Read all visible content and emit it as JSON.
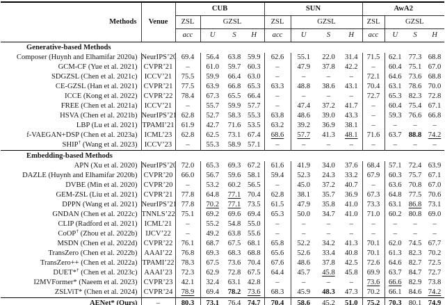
{
  "table": {
    "header": {
      "methods_label": "Methods",
      "venue_label": "Venue",
      "datasets": [
        "CUB",
        "SUN",
        "AwA2"
      ],
      "zsl_label": "ZSL",
      "gzsl_label": "GZSL",
      "metric_acc": "acc",
      "metric_u": "U",
      "metric_s": "S",
      "metric_h": "H"
    },
    "sections": [
      {
        "title": "Generative-based Methods",
        "rows": [
          {
            "method": "Composer (Huynh and Elhamifar 2020a)",
            "venue": "NeurIPS’20",
            "values": [
              "69.4",
              "56.4",
              "63.8",
              "59.9",
              "62.6",
              "55.1",
              "22.0",
              "31.4",
              "71.5",
              "62.1",
              "77.3",
              "68.8"
            ]
          },
          {
            "method": "GCM-CF (Yue et al. 2021)",
            "venue": "CVPR’21",
            "values": [
              "–",
              "61.0",
              "59.7",
              "60.3",
              "–",
              "47.9",
              "37.8",
              "42.2",
              "–",
              "60.4",
              "75.1",
              "67.0"
            ]
          },
          {
            "method": "SDGZSL (Chen et al. 2021c)",
            "venue": "ICCV’21",
            "values": [
              "75.5",
              "59.9",
              "66.4",
              "63.0",
              "–",
              "–",
              "–",
              "–",
              "72.1",
              "64.6",
              "73.6",
              "68.8"
            ]
          },
          {
            "method": "CE-GZSL (Han et al. 2021)",
            "venue": "CVPR’21",
            "values": [
              "77.5",
              "63.9",
              "66.8",
              "65.3",
              "63.3",
              "48.8",
              "38.6",
              "43.1",
              "70.4",
              "63.1",
              "78.6",
              "70.0"
            ]
          },
          {
            "method": "ICCE (Kong et al. 2022)",
            "venue": "CVPR’22",
            "values": [
              "78.4",
              "67.3",
              "65.5",
              "66.4",
              "–",
              "–",
              "–",
              "–",
              "72.7",
              "65.3",
              "82.3",
              "72.8"
            ]
          },
          {
            "method": "FREE (Chen et al. 2021a)",
            "venue": "ICCV’21",
            "values": [
              "–",
              "55.7",
              "59.9",
              "57.7",
              "–",
              "47.4",
              "37.2",
              "41.7",
              "–",
              "60.4",
              "75.4",
              "67.1"
            ]
          },
          {
            "method": "HSVA (Chen et al. 2021b)",
            "venue": "NeurIPS’21",
            "values": [
              "62.8",
              "52.7",
              "58.3",
              "55.3",
              "63.8",
              "48.6",
              "39.0",
              "43.3",
              "–",
              "59.3",
              "76.6",
              "66.8"
            ]
          },
          {
            "method": "LBP (Lu et al. 2021)",
            "venue": "TPAMI’21",
            "values": [
              "61.9",
              "42.7",
              "71.6",
              "53.5",
              "63.2",
              "39.2",
              "36.9",
              "38.1",
              "–",
              "–",
              "–",
              "–"
            ]
          },
          {
            "method": "f-VAEGAN+DSP (Chen et al. 2023a)",
            "venue": "ICML’23",
            "values": [
              "62.8",
              "62.5",
              "73.1",
              "67.4",
              "68.6",
              "57.7",
              "41.3",
              "48.1",
              "71.6",
              "63.7",
              "88.8",
              "74.2"
            ],
            "underline": [
              4,
              5,
              7,
              11
            ],
            "bold": [
              10
            ]
          },
          {
            "method": "SHIP",
            "sup": "†",
            "method2": " (Wang et al. 2023)",
            "venue": "ICCV’23",
            "values": [
              "–",
              "55.3",
              "58.9",
              "57.1",
              "–",
              "–",
              "–",
              "–",
              "–",
              "–",
              "–",
              "–"
            ]
          }
        ]
      },
      {
        "title": "Embedding-based Methods",
        "rows": [
          {
            "method": "APN (Xu et al. 2020)",
            "venue": "NeurIPS’20",
            "values": [
              "72.0",
              "65.3",
              "69.3",
              "67.2",
              "61.6",
              "41.9",
              "34.0",
              "37.6",
              "68.4",
              "57.1",
              "72.4",
              "63.9"
            ]
          },
          {
            "method": "DAZLE (Huynh and Elhamifar 2020b)",
            "venue": "CVPR’20",
            "values": [
              "66.0",
              "56.7",
              "59.6",
              "58.1",
              "59.4",
              "52.3",
              "24.3",
              "33.2",
              "67.9",
              "60.3",
              "75.7",
              "67.1"
            ]
          },
          {
            "method": "DVBE (Min et al. 2020)",
            "venue": "CVPR’20",
            "values": [
              "–",
              "53.2",
              "60.2",
              "56.5",
              "–",
              "45.0",
              "37.2",
              "40.7",
              "–",
              "63.6",
              "70.8",
              "67.0"
            ]
          },
          {
            "method": "GEM-ZSL (Liu et al. 2021)",
            "venue": "CVPR’21",
            "values": [
              "77.8",
              "64.8",
              "77.1",
              "70.4",
              "62.8",
              "38.1",
              "35.7",
              "36.9",
              "67.3",
              "64.8",
              "77.5",
              "70.6"
            ],
            "underline": [
              2
            ]
          },
          {
            "method": "DPPN (Wang et al. 2021)",
            "venue": "NeurIPS’21",
            "values": [
              "77.8",
              "70.2",
              "77.1",
              "73.5",
              "61.5",
              "47.9",
              "35.8",
              "41.0",
              "73.3",
              "63.1",
              "86.8",
              "73.1"
            ],
            "underline": [
              1,
              2,
              10
            ]
          },
          {
            "method": "GNDAN (Chen et al. 2022c)",
            "venue": "TNNLS’22",
            "values": [
              "75.1",
              "69.2",
              "69.6",
              "69.4",
              "65.3",
              "50.0",
              "34.7",
              "41.0",
              "71.0",
              "60.2",
              "80.8",
              "69.0"
            ]
          },
          {
            "method": "CLIP (Radford et al. 2021)",
            "venue": "ICML’21",
            "values": [
              "–",
              "55.2",
              "54.8",
              "55.0",
              "–",
              "–",
              "–",
              "–",
              "–",
              "–",
              "–",
              "–"
            ]
          },
          {
            "method": "CoOP",
            "sup": "†",
            "method2": " (Zhou et al. 2022b)",
            "venue": "IJCV’22",
            "values": [
              "–",
              "49.2",
              "63.8",
              "55.6",
              "–",
              "–",
              "–",
              "–",
              "–",
              "–",
              "–",
              "–"
            ]
          },
          {
            "method": "MSDN (Chen et al. 2022d)",
            "venue": "CVPR’22",
            "values": [
              "76.1",
              "68.7",
              "67.5",
              "68.1",
              "65.8",
              "52.2",
              "34.2",
              "41.3",
              "70.1",
              "62.0",
              "74.5",
              "67.7"
            ]
          },
          {
            "method": "TransZero (Chen et al. 2022b)",
            "venue": "AAAI’22",
            "values": [
              "76.8",
              "69.3",
              "68.3",
              "68.8",
              "65.6",
              "52.6",
              "33.4",
              "40.8",
              "70.1",
              "61.3",
              "82.3",
              "70.2"
            ]
          },
          {
            "method": "TransZero++ (Chen et al. 2022a)",
            "venue": "TPAMI’22",
            "values": [
              "78.3",
              "67.5",
              "73.6",
              "70.4",
              "67.6",
              "48.6",
              "37.8",
              "42.5",
              "72.6",
              "64.6",
              "82.7",
              "72.5"
            ]
          },
          {
            "method": "DUET*",
            "sup": "†",
            "method2": " (Chen et al. 2023c)",
            "venue": "AAAI’23",
            "values": [
              "72.3",
              "62.9",
              "72.8",
              "67.5",
              "64.4",
              "45.7",
              "45.8",
              "45.8",
              "69.9",
              "63.7",
              "84.7",
              "72.7"
            ],
            "underline": [
              6
            ]
          },
          {
            "method": "I2MVFormer* (Naeem et al. 2023)",
            "venue": "CVPR’23",
            "values": [
              "42.1",
              "32.4",
              "63.1",
              "42.8",
              "–",
              "–",
              "–",
              "–",
              "73.6",
              "66.6",
              "82.9",
              "73.8"
            ],
            "underline": [
              8,
              9
            ]
          },
          {
            "method": "ZSLViT* (Chen et al. 2024)",
            "venue": "CVPR’24",
            "values": [
              "78.9",
              "69.4",
              "78.2",
              "73.6",
              "68.3",
              "45.9",
              "48.3",
              "47.3",
              "70.2",
              "66.1",
              "84.6",
              "74.2"
            ],
            "underline": [
              0,
              3,
              11
            ],
            "bold": [
              2,
              6
            ]
          }
        ]
      }
    ],
    "final": {
      "method": "AENet* (Ours)",
      "venue": "–",
      "values": [
        "80.3",
        "73.1",
        "76.4",
        "74.7",
        "70.4",
        "58.6",
        "45.2",
        "51.0",
        "75.2",
        "70.3",
        "80.1",
        "74.9"
      ],
      "bold": [
        0,
        1,
        3,
        4,
        5,
        7,
        8,
        9,
        11
      ]
    }
  }
}
